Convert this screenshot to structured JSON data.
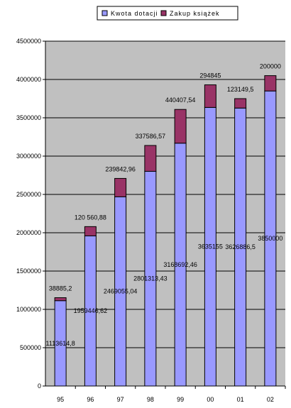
{
  "chart_data": {
    "type": "bar",
    "stacked": true,
    "categories": [
      "95",
      "96",
      "97",
      "98",
      "99",
      "00",
      "01",
      "02"
    ],
    "series": [
      {
        "name": "Kwota dotacji",
        "color": "#9999ff",
        "values": [
          1113614.8,
          1959446.62,
          2469055.04,
          2801313.43,
          3168692.46,
          3635155,
          3626886.5,
          3850000
        ],
        "labels": [
          "1113614,8",
          "1959446,62",
          "2469055,04",
          "2801313,43",
          "3168692,46",
          "3635155",
          "3626886,5",
          "3850000"
        ]
      },
      {
        "name": "Zakup książek",
        "color": "#993366",
        "values": [
          38885.2,
          120560.88,
          239842.96,
          337586.57,
          440407.54,
          294845,
          123149.5,
          200000
        ],
        "labels": [
          "38885,2",
          "120 560,88",
          "239842,96",
          "337586,57",
          "440407,54",
          "294845",
          "123149,5",
          "200000"
        ]
      }
    ],
    "ylim": [
      0,
      4500000
    ],
    "yticks": [
      0,
      500000,
      1000000,
      1500000,
      2000000,
      2500000,
      3000000,
      3500000,
      4000000,
      4500000
    ],
    "ytick_labels": [
      "0",
      "500000",
      "1000000",
      "1500000",
      "2000000",
      "2500000",
      "3000000",
      "3500000",
      "4000000",
      "4500000"
    ],
    "grid": true,
    "legend_position": "top",
    "plot_background": "#c0c0c0",
    "title": "",
    "xlabel": "",
    "ylabel": ""
  }
}
